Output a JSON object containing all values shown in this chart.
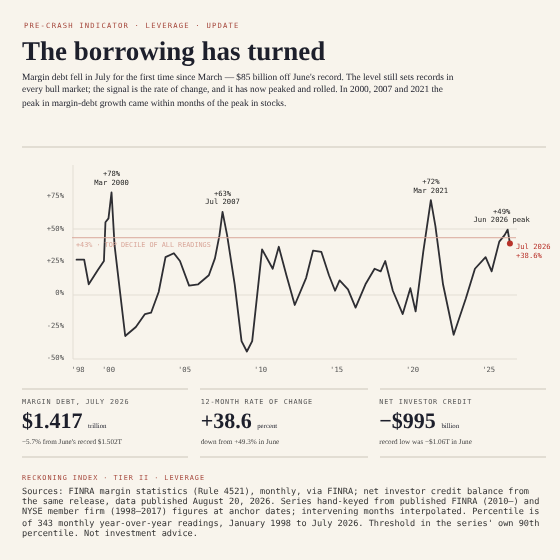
{
  "chart_data": {
    "type": "line",
    "title": "The borrowing has turned",
    "subtitle": "Margin debt fell in July for the first time since March — $85 billion off June's record. The level still sets records in every bull market; the signal is the rate of change, and it has now peaked and rolled. In 2000, 2007 and 2021 the peak in margin-debt growth came within months of the peak in stocks.",
    "annotations": [
      "PRE-CRASH INDICATOR · LEVERAGE · UPDATE",
      "MARGIN DEBT, JULY 2026",
      "$1.417",
      "trillion",
      "−5.7% from June's record $1.502T",
      "12-MONTH RATE OF CHANGE",
      "+38.6",
      "percent",
      "down from +49.3% in June",
      "NET INVESTOR CREDIT",
      "−$995",
      "billion",
      "record low was −$1.06T in June",
      "RECKONING INDEX · TIER II · LEVERAGE",
      "Sources: FINRA margin statistics (Rule 4521), monthly, via FINRA; net investor credit balance from the same release, data published August 20, 2026. Series hand-keyed from published FINRA (2010–) and NYSE member firm (1998–2017) figures at anchor dates; intervening months interpolated. Percentile is of 343 monthly year-over-year readings, January 1998 to July 2026. Threshold in the series' own 90th percentile. Not investment advice.",
      {
        "text": "+78%\nMar 2000",
        "x": 2000.2,
        "y": 78
      },
      {
        "text": "+63%\nJul 2007",
        "x": 2007.5,
        "y": 63
      },
      {
        "text": "+72%\nMar 2021",
        "x": 2021.2,
        "y": 72
      },
      {
        "text": "+49%\nJun 2026 peak",
        "x": 2026.25,
        "y": 49.3
      },
      {
        "text": "Jul 2026\n+38.6%",
        "x": 2026.4,
        "y": 38.6
      }
    ],
    "x": [
      1997.9,
      1998.4,
      1998.7,
      1999.3,
      1999.7,
      1999.8,
      2000.0,
      2000.2,
      2000.4,
      2000.7,
      2001.1,
      2001.8,
      2002.4,
      2002.8,
      2003.3,
      2003.75,
      2004.3,
      2004.7,
      2005.3,
      2005.9,
      2006.6,
      2007.0,
      2007.3,
      2007.5,
      2007.8,
      2008.3,
      2008.75,
      2009.1,
      2009.45,
      2009.9,
      2010.1,
      2010.8,
      2011.2,
      2011.7,
      2012.25,
      2013.0,
      2013.45,
      2014.0,
      2014.5,
      2014.9,
      2015.2,
      2015.75,
      2016.25,
      2016.9,
      2017.5,
      2017.9,
      2018.2,
      2018.7,
      2019.35,
      2019.85,
      2020.2,
      2020.7,
      2021.2,
      2021.5,
      2022.0,
      2022.7,
      2023.5,
      2024.1,
      2024.8,
      2025.2,
      2025.7,
      2026.05,
      2026.25,
      2026.4
    ],
    "series": [
      {
        "color": "#2e2e33",
        "values": [
          26,
          26,
          7,
          18,
          25,
          55,
          58,
          78,
          37,
          7,
          -33,
          -26,
          -16,
          -15,
          1,
          28,
          31,
          25,
          6,
          7,
          14,
          27,
          45,
          63,
          45,
          7,
          -37,
          -45,
          -37,
          12,
          34,
          19,
          36,
          14,
          -9,
          12,
          33,
          32,
          14,
          2,
          10,
          3,
          -11,
          7,
          19,
          17,
          25,
          2,
          -16,
          4,
          -14,
          32,
          72,
          52,
          7,
          -32,
          -4,
          19,
          28,
          17,
          40,
          45,
          49.3,
          38.6
        ]
      },
      {
        "type": "scatter",
        "marker": "circle",
        "color": "#b8322a",
        "x": [
          2026.4
        ],
        "values": [
          38.6
        ]
      }
    ],
    "xlim": [
      1997.6,
      2026.8
    ],
    "xticks": [
      {
        "value": 1998,
        "label": "'98"
      },
      {
        "value": 2000,
        "label": "'00"
      },
      {
        "value": 2005,
        "label": "'05"
      },
      {
        "value": 2010,
        "label": "'10"
      },
      {
        "value": 2015,
        "label": "'15"
      },
      {
        "value": 2020,
        "label": "'20"
      },
      {
        "value": 2025,
        "label": "'25"
      }
    ],
    "ylim": [
      -50,
      100
    ],
    "yticks": [
      {
        "value": -50,
        "label": "-50%"
      },
      {
        "value": -25,
        "label": "-25%"
      },
      {
        "value": 0,
        "label": "0%"
      },
      {
        "value": 25,
        "label": "+25%"
      },
      {
        "value": 50,
        "label": "+50%"
      },
      {
        "value": 75,
        "label": "+75%"
      }
    ],
    "grid": "y",
    "ref_lines": [
      {
        "axis": "y",
        "value": 43,
        "label": "+43% · TOP DECILE OF ALL READINGS",
        "color": "#d9a79a"
      }
    ]
  }
}
